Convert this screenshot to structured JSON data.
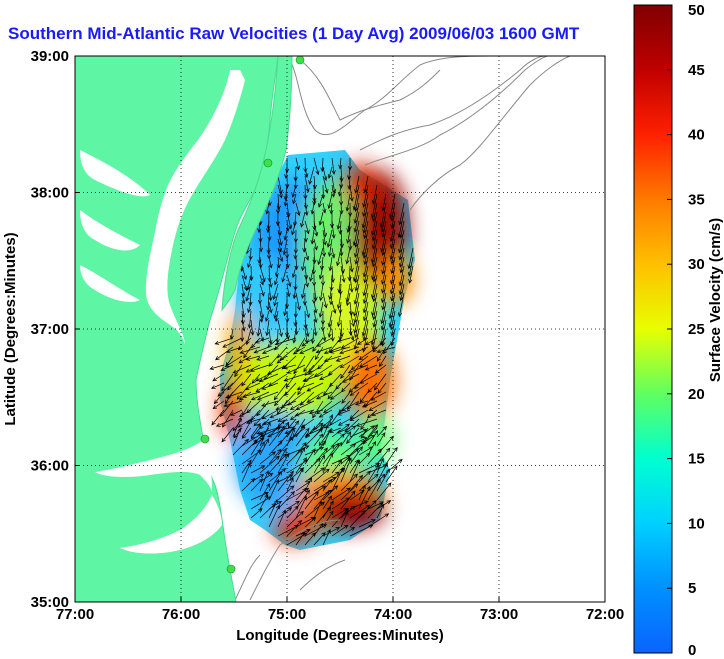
{
  "title": "Southern Mid-Atlantic Raw Velocities (1 Day Avg) 2009/06/03 1600 GMT",
  "chart_data": {
    "type": "heatmap",
    "title": "Southern Mid-Atlantic Raw Velocities (1 Day Avg) 2009/06/03 1600 GMT",
    "xlabel": "Longitude (Degrees:Minutes)",
    "ylabel": "Latitude (Degrees:Minutes)",
    "x_ticks": [
      "77:00",
      "76:00",
      "75:00",
      "74:00",
      "73:00",
      "72:00"
    ],
    "y_ticks": [
      "39:00",
      "38:00",
      "37:00",
      "36:00",
      "35:00"
    ],
    "xlim": [
      -77,
      -72
    ],
    "ylim": [
      35,
      39
    ],
    "grid": true,
    "colorbar": {
      "label": "Surface Velocity (cm/s)",
      "range": [
        0,
        50
      ],
      "ticks": [
        "0",
        "5",
        "10",
        "15",
        "20",
        "25",
        "30",
        "35",
        "40",
        "45",
        "50"
      ],
      "colors": [
        "#0a64ff",
        "#00c8ff",
        "#00ffd0",
        "#60ff60",
        "#e8ff00",
        "#ffb000",
        "#ff5a00",
        "#e01000",
        "#a00000",
        "#800000"
      ]
    },
    "land_color": "#5ef5a5",
    "velocity_regions": [
      {
        "lon": -75.0,
        "lat": 37.7,
        "speed": 8
      },
      {
        "lon": -75.2,
        "lat": 37.1,
        "speed": 12
      },
      {
        "lon": -74.8,
        "lat": 36.8,
        "speed": 20
      },
      {
        "lon": -74.3,
        "lat": 37.8,
        "speed": 45
      },
      {
        "lon": -74.3,
        "lat": 36.5,
        "speed": 35
      },
      {
        "lon": -74.6,
        "lat": 35.8,
        "speed": 45
      },
      {
        "lon": -75.4,
        "lat": 36.7,
        "speed": 38
      },
      {
        "lon": -75.0,
        "lat": 36.0,
        "speed": 10
      }
    ]
  }
}
